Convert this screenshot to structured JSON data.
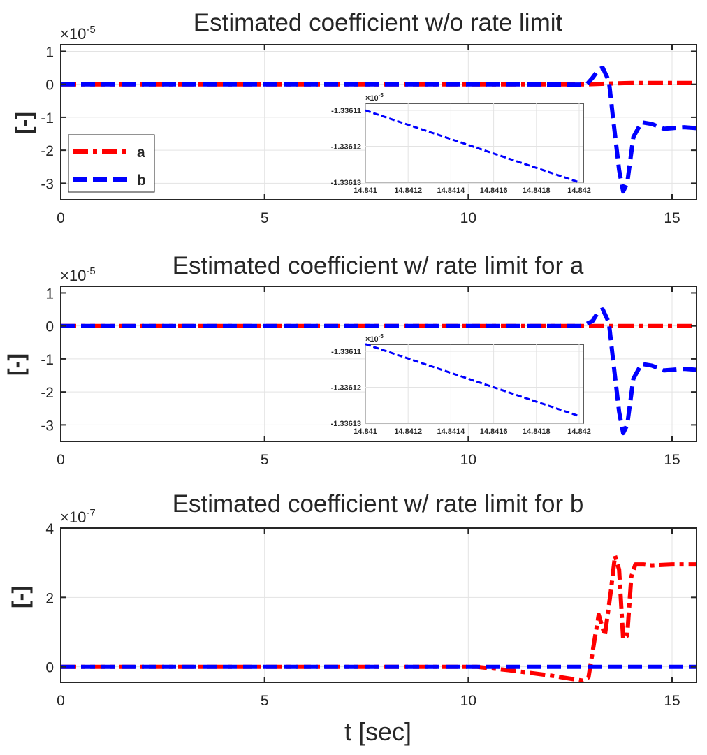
{
  "figure": {
    "xlabel": "t [sec]",
    "legend": [
      {
        "label": "a",
        "color": "#ff0000",
        "dash": "dashdot"
      },
      {
        "label": "b",
        "color": "#0000ff",
        "dash": "dashed"
      }
    ]
  },
  "chart_data": [
    {
      "type": "line",
      "title": "Estimated coefficient w/o rate limit",
      "ylabel": "[-]",
      "xlabel": "",
      "exponent_label": "×10",
      "exponent": "-5",
      "xlim": [
        0,
        15.6
      ],
      "ylim": [
        -3.5,
        1.2
      ],
      "xticks": [
        0,
        5,
        10,
        15
      ],
      "yticks": [
        1,
        0,
        -1,
        -2,
        -3
      ],
      "grid": true,
      "legend_position": "lower-left",
      "series": [
        {
          "name": "a",
          "color": "#ff0000",
          "dash": "dashdot",
          "x": [
            0,
            12.9,
            13.4,
            14.0,
            15.6
          ],
          "y": [
            0,
            0,
            0.02,
            0.04,
            0.04
          ]
        },
        {
          "name": "b",
          "color": "#0000ff",
          "dash": "dashed",
          "x": [
            0,
            11.0,
            12.9,
            13.05,
            13.2,
            13.3,
            13.45,
            13.55,
            13.7,
            13.8,
            13.9,
            14.05,
            14.25,
            14.5,
            14.8,
            15.0,
            15.3,
            15.6
          ],
          "y": [
            0,
            0,
            -0.01,
            0.2,
            0.45,
            0.5,
            0.1,
            -1.0,
            -2.6,
            -3.25,
            -3.0,
            -1.6,
            -1.15,
            -1.2,
            -1.35,
            -1.33,
            -1.3,
            -1.33
          ]
        }
      ],
      "inset": {
        "exponent_label": "×10",
        "exponent": "-5",
        "xticks": [
          "14.841",
          "14.8412",
          "14.8414",
          "14.8416",
          "14.8418",
          "14.842"
        ],
        "yticks": [
          "-1.33611",
          "-1.33612",
          "-1.33613"
        ],
        "xlim": [
          14.841,
          14.84202
        ],
        "ylim": [
          -1.33613,
          -1.33611
        ],
        "series": {
          "name": "b",
          "color": "#0000ff",
          "dash": "dashed",
          "x": [
            14.841,
            14.84202
          ],
          "y": [
            -1.33611,
            -1.33613
          ]
        }
      }
    },
    {
      "type": "line",
      "title": "Estimated coefficient w/ rate limit for a",
      "ylabel": "[-]",
      "xlabel": "",
      "exponent_label": "×10",
      "exponent": "-5",
      "xlim": [
        0,
        15.6
      ],
      "ylim": [
        -3.5,
        1.2
      ],
      "xticks": [
        0,
        5,
        10,
        15
      ],
      "yticks": [
        1,
        0,
        -1,
        -2,
        -3
      ],
      "grid": true,
      "series": [
        {
          "name": "a",
          "color": "#ff0000",
          "dash": "dashdot",
          "x": [
            0,
            15.6
          ],
          "y": [
            0,
            0
          ]
        },
        {
          "name": "b",
          "color": "#0000ff",
          "dash": "dashed",
          "x": [
            0,
            12.8,
            13.05,
            13.2,
            13.3,
            13.45,
            13.55,
            13.7,
            13.8,
            13.9,
            14.05,
            14.25,
            14.5,
            14.8,
            15.0,
            15.3,
            15.6
          ],
          "y": [
            0,
            0,
            0.15,
            0.45,
            0.5,
            0.1,
            -1.0,
            -2.6,
            -3.25,
            -3.0,
            -1.6,
            -1.15,
            -1.2,
            -1.35,
            -1.33,
            -1.3,
            -1.33
          ]
        }
      ],
      "inset": {
        "exponent_label": "×10",
        "exponent": "-5",
        "xticks": [
          "14.841",
          "14.8412",
          "14.8414",
          "14.8416",
          "14.8418",
          "14.842"
        ],
        "yticks": [
          "-1.33611",
          "-1.33612",
          "-1.33613"
        ],
        "xlim": [
          14.841,
          14.84205
        ],
        "ylim": [
          -1.33613,
          -1.33611
        ],
        "series": {
          "name": "b",
          "color": "#0000ff",
          "dash": "dashed",
          "x": [
            14.841,
            14.84205
          ],
          "y": [
            -1.336108,
            -1.336128
          ]
        }
      }
    },
    {
      "type": "line",
      "title": "Estimated coefficient w/ rate limit for b",
      "ylabel": "[-]",
      "xlabel": "t [sec]",
      "exponent_label": "×10",
      "exponent": "-7",
      "xlim": [
        0,
        15.6
      ],
      "ylim": [
        -0.45,
        4
      ],
      "xticks": [
        0,
        5,
        10,
        15
      ],
      "yticks": [
        4,
        2,
        0
      ],
      "grid": true,
      "series": [
        {
          "name": "a",
          "color": "#ff0000",
          "dash": "dashdot",
          "x": [
            0,
            10.2,
            11.0,
            12.0,
            12.8,
            12.95,
            13.1,
            13.2,
            13.35,
            13.5,
            13.6,
            13.7,
            13.8,
            13.9,
            14.0,
            14.1,
            14.3,
            14.5,
            15.0,
            15.6
          ],
          "y": [
            0,
            0,
            -0.1,
            -0.25,
            -0.4,
            -0.3,
            0.8,
            1.5,
            0.9,
            2.2,
            3.2,
            2.8,
            0.8,
            0.9,
            2.6,
            2.95,
            2.95,
            2.92,
            2.95,
            2.95
          ]
        },
        {
          "name": "b",
          "color": "#0000ff",
          "dash": "dashed",
          "x": [
            0,
            15.6
          ],
          "y": [
            0,
            0
          ]
        }
      ]
    }
  ]
}
